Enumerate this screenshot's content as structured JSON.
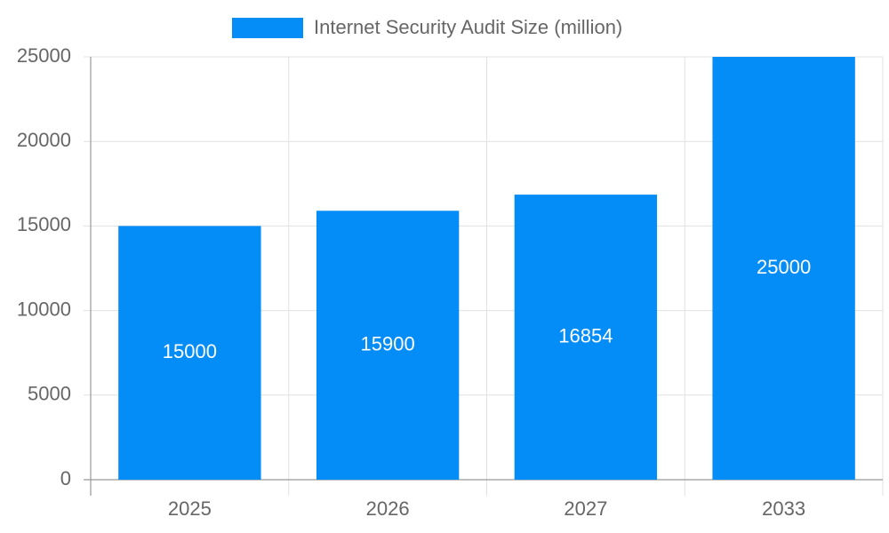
{
  "chart_data": {
    "type": "bar",
    "categories": [
      "2025",
      "2026",
      "2027",
      "2033"
    ],
    "series": [
      {
        "name": "Internet Security Audit Size (million)",
        "color": "#058df7",
        "values": [
          15000,
          15900,
          16854,
          25000
        ]
      }
    ],
    "ylim": [
      0,
      25000
    ],
    "yticks": [
      0,
      5000,
      10000,
      15000,
      20000,
      25000
    ],
    "grid": true,
    "legend": "top"
  }
}
